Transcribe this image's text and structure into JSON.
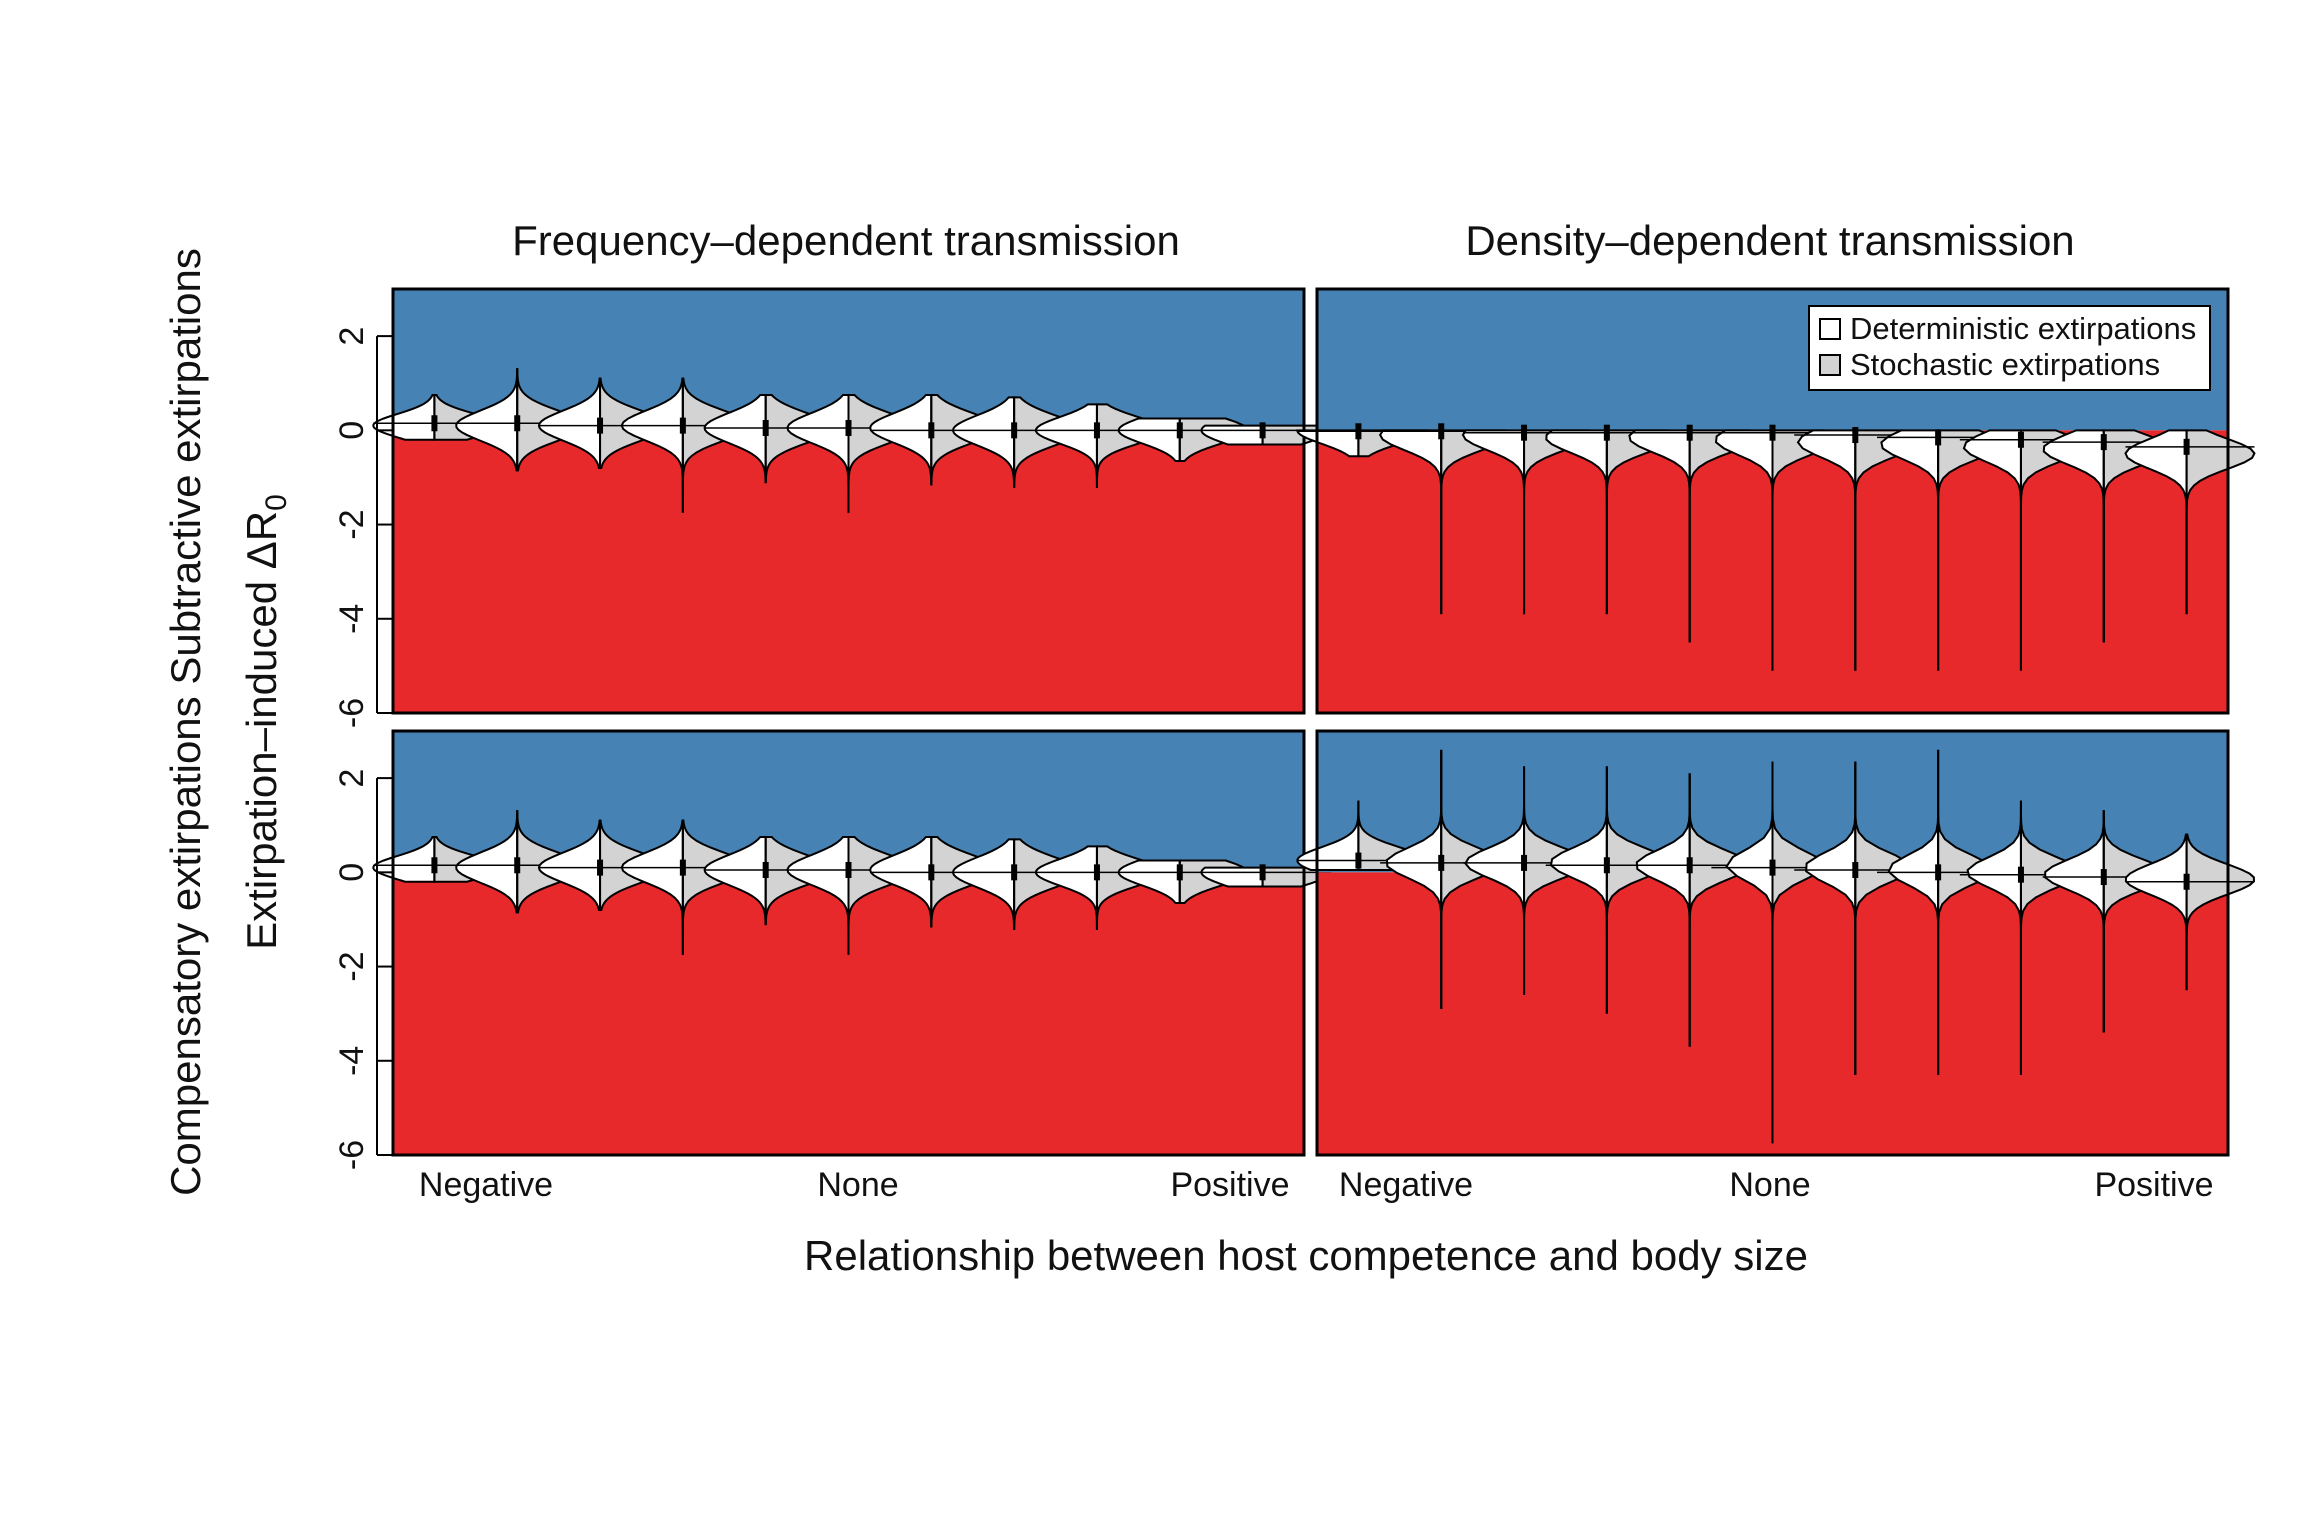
{
  "chart_data": {
    "type": "violin",
    "xlabel": "Relationship between host competence and body size",
    "ylabel": "Extirpation–induced ΔR",
    "ylabel_subscript": "0",
    "row_labels": {
      "top": "Subtractive extirpations",
      "bottom": "Compensatory extirpations"
    },
    "column_titles": [
      "Frequency–dependent transmission",
      "Density–dependent transmission"
    ],
    "x_tick_labels": [
      "Negative",
      "None",
      "Positive"
    ],
    "y_ticks": [
      2,
      0,
      -2,
      -4,
      -6
    ],
    "ylim": [
      -6,
      3
    ],
    "colors": {
      "positive_region": "#4682b4",
      "negative_region": "#e8292b",
      "deterministic": "#ffffff",
      "stochastic": "#d3d3d3",
      "outline": "#000000"
    },
    "legend": {
      "placement": "top-right",
      "entries": [
        "Deterministic extirpations",
        "Stochastic extirpations"
      ]
    },
    "panels": [
      {
        "row": "top",
        "column": "Frequency–dependent transmission",
        "violins": [
          {
            "median": 0.15,
            "min": -0.2,
            "max": 0.75,
            "center": 0.1,
            "width": 0.35
          },
          {
            "median": 0.15,
            "min": -0.85,
            "max": 1.3,
            "center": 0.1,
            "width": 0.45
          },
          {
            "median": 0.1,
            "min": -0.8,
            "max": 1.1,
            "center": 0.1,
            "width": 0.45
          },
          {
            "median": 0.1,
            "min": -1.75,
            "max": 1.1,
            "center": 0.1,
            "width": 0.45
          },
          {
            "median": 0.05,
            "min": -1.1,
            "max": 0.75,
            "center": 0.05,
            "width": 0.45
          },
          {
            "median": 0.05,
            "min": -1.75,
            "max": 0.75,
            "center": 0.05,
            "width": 0.45
          },
          {
            "median": 0.0,
            "min": -1.15,
            "max": 0.75,
            "center": 0.05,
            "width": 0.45
          },
          {
            "median": 0.0,
            "min": -1.2,
            "max": 0.7,
            "center": 0.0,
            "width": 0.45
          },
          {
            "median": 0.0,
            "min": -1.2,
            "max": 0.55,
            "center": 0.0,
            "width": 0.4
          },
          {
            "median": 0.0,
            "min": -0.65,
            "max": 0.25,
            "center": 0.0,
            "width": 0.4
          },
          {
            "median": 0.0,
            "min": -0.3,
            "max": 0.1,
            "center": 0.0,
            "width": 0.4
          }
        ]
      },
      {
        "row": "top",
        "column": "Density–dependent transmission",
        "violins": [
          {
            "median": -0.02,
            "min": -0.55,
            "max": 0.0,
            "center": 0.0,
            "width": 0.4
          },
          {
            "median": -0.02,
            "min": -3.9,
            "max": 0.0,
            "center": -0.1,
            "width": 0.45
          },
          {
            "median": -0.05,
            "min": -3.9,
            "max": 0.0,
            "center": -0.1,
            "width": 0.45
          },
          {
            "median": -0.05,
            "min": -3.9,
            "max": 0.0,
            "center": -0.15,
            "width": 0.45
          },
          {
            "median": -0.05,
            "min": -4.5,
            "max": 0.0,
            "center": -0.15,
            "width": 0.45
          },
          {
            "median": -0.05,
            "min": -5.1,
            "max": 0.0,
            "center": -0.2,
            "width": 0.45
          },
          {
            "median": -0.1,
            "min": -5.1,
            "max": 0.0,
            "center": -0.25,
            "width": 0.45
          },
          {
            "median": -0.15,
            "min": -5.1,
            "max": 0.0,
            "center": -0.3,
            "width": 0.45
          },
          {
            "median": -0.2,
            "min": -5.1,
            "max": 0.0,
            "center": -0.35,
            "width": 0.45
          },
          {
            "median": -0.25,
            "min": -4.5,
            "max": 0.0,
            "center": -0.4,
            "width": 0.45
          },
          {
            "median": -0.35,
            "min": -3.9,
            "max": 0.0,
            "center": -0.5,
            "width": 0.45
          }
        ]
      },
      {
        "row": "bottom",
        "column": "Frequency–dependent transmission",
        "violins": [
          {
            "median": 0.15,
            "min": -0.2,
            "max": 0.75,
            "center": 0.1,
            "width": 0.35
          },
          {
            "median": 0.15,
            "min": -0.85,
            "max": 1.3,
            "center": 0.1,
            "width": 0.45
          },
          {
            "median": 0.1,
            "min": -0.8,
            "max": 1.1,
            "center": 0.1,
            "width": 0.45
          },
          {
            "median": 0.1,
            "min": -1.75,
            "max": 1.1,
            "center": 0.1,
            "width": 0.45
          },
          {
            "median": 0.05,
            "min": -1.1,
            "max": 0.75,
            "center": 0.05,
            "width": 0.45
          },
          {
            "median": 0.05,
            "min": -1.75,
            "max": 0.75,
            "center": 0.05,
            "width": 0.45
          },
          {
            "median": 0.0,
            "min": -1.15,
            "max": 0.75,
            "center": 0.05,
            "width": 0.45
          },
          {
            "median": 0.0,
            "min": -1.2,
            "max": 0.7,
            "center": 0.0,
            "width": 0.45
          },
          {
            "median": 0.0,
            "min": -1.2,
            "max": 0.55,
            "center": 0.0,
            "width": 0.4
          },
          {
            "median": 0.0,
            "min": -0.65,
            "max": 0.25,
            "center": 0.0,
            "width": 0.4
          },
          {
            "median": 0.0,
            "min": -0.3,
            "max": 0.1,
            "center": 0.0,
            "width": 0.4
          }
        ]
      },
      {
        "row": "bottom",
        "column": "Density–dependent transmission",
        "violins": [
          {
            "median": 0.25,
            "min": 0.05,
            "max": 1.5,
            "center": 0.25,
            "width": 0.4
          },
          {
            "median": 0.2,
            "min": -2.9,
            "max": 2.6,
            "center": 0.2,
            "width": 0.45
          },
          {
            "median": 0.2,
            "min": -2.6,
            "max": 2.25,
            "center": 0.2,
            "width": 0.45
          },
          {
            "median": 0.15,
            "min": -3.0,
            "max": 2.25,
            "center": 0.2,
            "width": 0.45
          },
          {
            "median": 0.15,
            "min": -3.7,
            "max": 2.1,
            "center": 0.15,
            "width": 0.45
          },
          {
            "median": 0.1,
            "min": -5.75,
            "max": 2.35,
            "center": 0.15,
            "width": 0.45
          },
          {
            "median": 0.05,
            "min": -4.3,
            "max": 2.35,
            "center": 0.1,
            "width": 0.45
          },
          {
            "median": 0.0,
            "min": -4.3,
            "max": 2.6,
            "center": 0.05,
            "width": 0.45
          },
          {
            "median": -0.05,
            "min": -4.3,
            "max": 1.5,
            "center": 0.0,
            "width": 0.45
          },
          {
            "median": -0.1,
            "min": -3.4,
            "max": 1.3,
            "center": -0.05,
            "width": 0.45
          },
          {
            "median": -0.2,
            "min": -2.5,
            "max": 0.8,
            "center": -0.15,
            "width": 0.45
          }
        ]
      }
    ]
  }
}
